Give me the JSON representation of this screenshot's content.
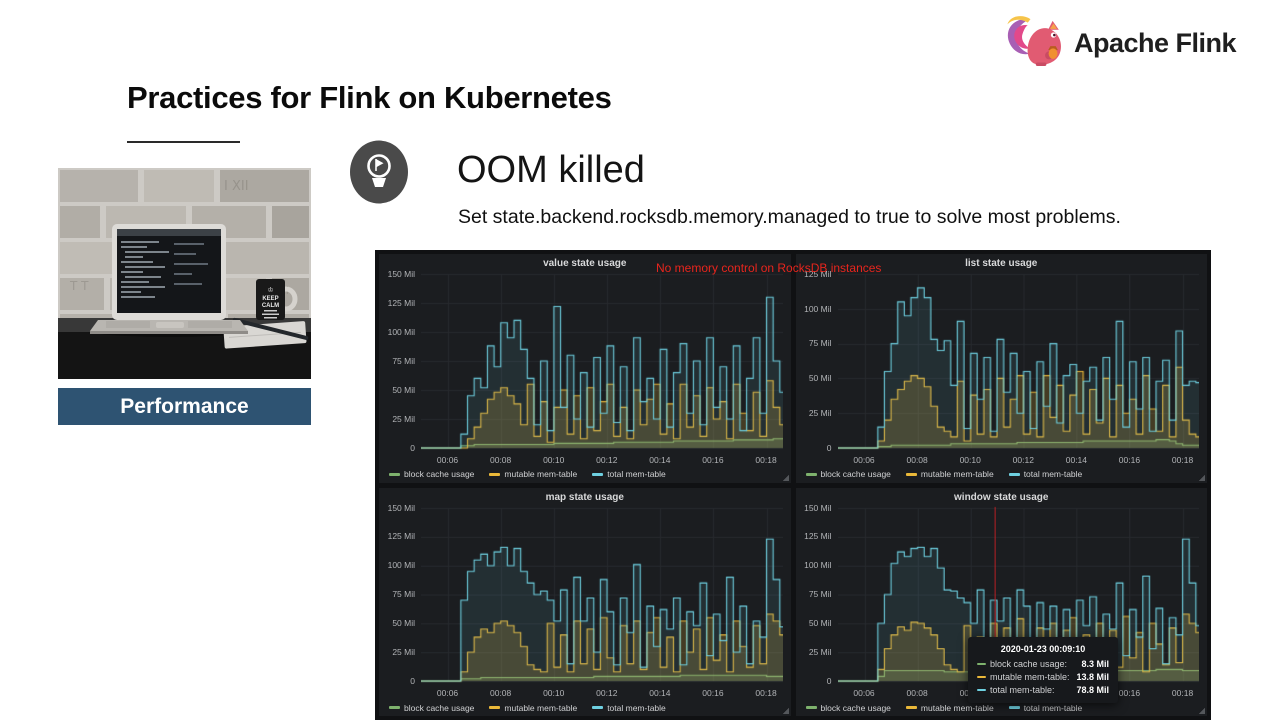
{
  "slide": {
    "title": "Practices for Flink on Kubernetes",
    "section_label": "Performance",
    "logo_text": "Apache Flink",
    "callout": {
      "heading": "OOM killed",
      "body": "Set state.backend.rocksdb.memory.managed to true to solve most problems."
    }
  },
  "dashboard": {
    "annotation": "No memory control on RocksDB instances",
    "annotation_color": "#e8251d",
    "tooltip": {
      "timestamp": "2020-01-23 00:09:10",
      "rows": [
        {
          "label": "block cache usage:",
          "value": "8.3 Mil",
          "color": "#7eb26d"
        },
        {
          "label": "mutable mem-table:",
          "value": "13.8 Mil",
          "color": "#eab839"
        },
        {
          "label": "total mem-table:",
          "value": "78.8 Mil",
          "color": "#6ed0e0"
        }
      ]
    }
  },
  "chart_data": [
    {
      "type": "area",
      "title": "value state usage",
      "ylim": [
        0,
        150
      ],
      "x_range": [
        5.0,
        18.62
      ],
      "x_start": 5.0,
      "x_step": 0.25,
      "yticks": [
        {
          "v": 0,
          "label": "0"
        },
        {
          "v": 25,
          "label": "25 Mil"
        },
        {
          "v": 50,
          "label": "50 Mil"
        },
        {
          "v": 75,
          "label": "75 Mil"
        },
        {
          "v": 100,
          "label": "100 Mil"
        },
        {
          "v": 125,
          "label": "125 Mil"
        },
        {
          "v": 150,
          "label": "150 Mil"
        }
      ],
      "xticks": [
        {
          "v": 6,
          "label": "00:06"
        },
        {
          "v": 8,
          "label": "00:08"
        },
        {
          "v": 10,
          "label": "00:10"
        },
        {
          "v": 12,
          "label": "00:12"
        },
        {
          "v": 14,
          "label": "00:14"
        },
        {
          "v": 16,
          "label": "00:16"
        },
        {
          "v": 18,
          "label": "00:18"
        }
      ],
      "series": [
        {
          "name": "block cache usage",
          "color": "#7eb26d",
          "fill": 0.18,
          "values": [
            0,
            0,
            0,
            0,
            0,
            0,
            2,
            2,
            3,
            3,
            3,
            3,
            3,
            3,
            3,
            3,
            3,
            3,
            3,
            3,
            4,
            4,
            4,
            4,
            4,
            4,
            4,
            4,
            4,
            5,
            5,
            5,
            5,
            5,
            5,
            5,
            5,
            5,
            6,
            6,
            6,
            6,
            6,
            6,
            6,
            6,
            6,
            7,
            7,
            7,
            7,
            7,
            7,
            8,
            8
          ]
        },
        {
          "name": "mutable mem-table",
          "color": "#eab839",
          "fill": 0.2,
          "values": [
            0,
            0,
            0,
            0,
            0,
            0,
            0,
            8,
            18,
            30,
            42,
            48,
            52,
            45,
            38,
            20,
            55,
            10,
            40,
            5,
            35,
            50,
            12,
            45,
            8,
            52,
            15,
            40,
            55,
            10,
            35,
            8,
            50,
            20,
            42,
            55,
            12,
            38,
            8,
            55,
            18,
            45,
            10,
            52,
            25,
            40,
            8,
            55,
            30,
            15,
            48,
            10,
            58,
            35,
            20
          ]
        },
        {
          "name": "total mem-table",
          "color": "#6ed0e0",
          "fill": 0.1,
          "values": [
            0,
            0,
            0,
            0,
            0,
            0,
            12,
            45,
            60,
            52,
            88,
            70,
            108,
            95,
            110,
            85,
            60,
            20,
            75,
            15,
            122,
            35,
            80,
            25,
            65,
            18,
            78,
            30,
            88,
            22,
            70,
            15,
            95,
            40,
            60,
            25,
            85,
            18,
            65,
            90,
            30,
            75,
            20,
            95,
            35,
            70,
            25,
            88,
            15,
            60,
            95,
            30,
            130,
            75,
            48
          ]
        }
      ]
    },
    {
      "type": "area",
      "title": "list state usage",
      "ylim": [
        0,
        125
      ],
      "x_range": [
        5.0,
        18.62
      ],
      "x_start": 5.0,
      "x_step": 0.25,
      "yticks": [
        {
          "v": 0,
          "label": "0"
        },
        {
          "v": 25,
          "label": "25 Mil"
        },
        {
          "v": 50,
          "label": "50 Mil"
        },
        {
          "v": 75,
          "label": "75 Mil"
        },
        {
          "v": 100,
          "label": "100 Mil"
        },
        {
          "v": 125,
          "label": "125 Mil"
        }
      ],
      "xticks": [
        {
          "v": 6,
          "label": "00:06"
        },
        {
          "v": 8,
          "label": "00:08"
        },
        {
          "v": 10,
          "label": "00:10"
        },
        {
          "v": 12,
          "label": "00:12"
        },
        {
          "v": 14,
          "label": "00:14"
        },
        {
          "v": 16,
          "label": "00:16"
        },
        {
          "v": 18,
          "label": "00:18"
        }
      ],
      "series": [
        {
          "name": "block cache usage",
          "color": "#7eb26d",
          "fill": 0.18,
          "values": [
            0,
            0,
            0,
            0,
            0,
            0,
            1,
            1,
            2,
            2,
            2,
            2,
            2,
            2,
            2,
            2,
            2,
            3,
            3,
            3,
            3,
            3,
            3,
            3,
            3,
            3,
            3,
            4,
            4,
            4,
            4,
            4,
            4,
            4,
            4,
            4,
            4,
            5,
            5,
            5,
            5,
            5,
            5,
            5,
            5,
            5,
            5,
            5,
            6,
            6,
            5,
            3,
            2,
            2,
            2
          ]
        },
        {
          "name": "mutable mem-table",
          "color": "#eab839",
          "fill": 0.2,
          "values": [
            0,
            0,
            0,
            0,
            0,
            0,
            5,
            20,
            35,
            42,
            48,
            52,
            50,
            44,
            30,
            15,
            12,
            8,
            48,
            5,
            38,
            10,
            42,
            8,
            50,
            15,
            35,
            52,
            10,
            40,
            8,
            52,
            22,
            45,
            12,
            38,
            55,
            10,
            42,
            18,
            50,
            8,
            45,
            25,
            35,
            10,
            52,
            28,
            12,
            45,
            8,
            58,
            20,
            10,
            8
          ]
        },
        {
          "name": "total mem-table",
          "color": "#6ed0e0",
          "fill": 0.1,
          "values": [
            0,
            0,
            0,
            0,
            0,
            0,
            15,
            55,
            75,
            105,
            95,
            108,
            115,
            108,
            78,
            70,
            77,
            45,
            91,
            14,
            68,
            35,
            65,
            12,
            78,
            40,
            68,
            25,
            55,
            14,
            62,
            30,
            75,
            18,
            52,
            60,
            25,
            48,
            58,
            20,
            65,
            35,
            91,
            15,
            62,
            28,
            65,
            12,
            48,
            63,
            20,
            84,
            45,
            48,
            47
          ]
        }
      ]
    },
    {
      "type": "area",
      "title": "map state usage",
      "ylim": [
        0,
        150
      ],
      "x_range": [
        5.0,
        18.62
      ],
      "x_start": 5.0,
      "x_step": 0.25,
      "yticks": [
        {
          "v": 0,
          "label": "0"
        },
        {
          "v": 25,
          "label": "25 Mil"
        },
        {
          "v": 50,
          "label": "50 Mil"
        },
        {
          "v": 75,
          "label": "75 Mil"
        },
        {
          "v": 100,
          "label": "100 Mil"
        },
        {
          "v": 125,
          "label": "125 Mil"
        },
        {
          "v": 150,
          "label": "150 Mil"
        }
      ],
      "xticks": [
        {
          "v": 6,
          "label": "00:06"
        },
        {
          "v": 8,
          "label": "00:08"
        },
        {
          "v": 10,
          "label": "00:10"
        },
        {
          "v": 12,
          "label": "00:12"
        },
        {
          "v": 14,
          "label": "00:14"
        },
        {
          "v": 16,
          "label": "00:16"
        },
        {
          "v": 18,
          "label": "00:18"
        }
      ],
      "series": [
        {
          "name": "block cache usage",
          "color": "#7eb26d",
          "fill": 0.18,
          "values": [
            0,
            0,
            0,
            0,
            0,
            0,
            2,
            2,
            2,
            3,
            3,
            3,
            3,
            3,
            3,
            3,
            3,
            3,
            3,
            3,
            3,
            3,
            3,
            3,
            3,
            3,
            4,
            4,
            4,
            4,
            4,
            4,
            4,
            4,
            4,
            4,
            4,
            4,
            4,
            5,
            5,
            5,
            5,
            5,
            5,
            5,
            5,
            5,
            5,
            5,
            5,
            5,
            4,
            4,
            4
          ]
        },
        {
          "name": "mutable mem-table",
          "color": "#eab839",
          "fill": 0.2,
          "values": [
            0,
            0,
            0,
            0,
            0,
            0,
            8,
            25,
            38,
            45,
            42,
            50,
            52,
            48,
            42,
            30,
            14,
            10,
            8,
            50,
            12,
            40,
            8,
            52,
            15,
            45,
            10,
            55,
            20,
            8,
            48,
            15,
            52,
            10,
            42,
            55,
            12,
            38,
            8,
            52,
            25,
            45,
            10,
            55,
            18,
            40,
            8,
            52,
            30,
            12,
            48,
            15,
            58,
            52,
            40
          ]
        },
        {
          "name": "total mem-table",
          "color": "#6ed0e0",
          "fill": 0.1,
          "values": [
            0,
            0,
            0,
            0,
            0,
            0,
            70,
            95,
            105,
            110,
            100,
            112,
            116,
            100,
            115,
            95,
            85,
            75,
            78,
            70,
            52,
            79,
            15,
            90,
            52,
            72,
            25,
            88,
            60,
            14,
            72,
            42,
            101,
            12,
            65,
            30,
            62,
            45,
            72,
            14,
            60,
            48,
            85,
            22,
            58,
            35,
            90,
            25,
            65,
            15,
            52,
            38,
            123,
            88,
            47
          ]
        }
      ]
    },
    {
      "type": "area",
      "title": "window state usage",
      "ylim": [
        0,
        150
      ],
      "x_range": [
        5.0,
        18.62
      ],
      "x_start": 5.0,
      "x_step": 0.25,
      "cursor_t": 10.9,
      "cursor_color": "#b92125",
      "yticks": [
        {
          "v": 0,
          "label": "0"
        },
        {
          "v": 25,
          "label": "25 Mil"
        },
        {
          "v": 50,
          "label": "50 Mil"
        },
        {
          "v": 75,
          "label": "75 Mil"
        },
        {
          "v": 100,
          "label": "100 Mil"
        },
        {
          "v": 125,
          "label": "125 Mil"
        },
        {
          "v": 150,
          "label": "150 Mil"
        }
      ],
      "xticks": [
        {
          "v": 6,
          "label": "00:06"
        },
        {
          "v": 8,
          "label": "00:08"
        },
        {
          "v": 10,
          "label": "00:10"
        },
        {
          "v": 12,
          "label": "00:12"
        },
        {
          "v": 14,
          "label": "00:14"
        },
        {
          "v": 16,
          "label": "00:16"
        },
        {
          "v": 18,
          "label": "00:18"
        }
      ],
      "series": [
        {
          "name": "block cache usage",
          "color": "#7eb26d",
          "fill": 0.18,
          "values": [
            0,
            0,
            0,
            0,
            0,
            0,
            4,
            9,
            9,
            9,
            9,
            9,
            9,
            9,
            9,
            9,
            8,
            8,
            8,
            8,
            8,
            8,
            8,
            8,
            8,
            8,
            9,
            9,
            9,
            9,
            9,
            9,
            9,
            9,
            9,
            9,
            9,
            9,
            9,
            9,
            9,
            9,
            9,
            9,
            9,
            9,
            9,
            9,
            10,
            10,
            10,
            10,
            9,
            9,
            9
          ]
        },
        {
          "name": "mutable mem-table",
          "color": "#eab839",
          "fill": 0.2,
          "values": [
            0,
            0,
            0,
            0,
            0,
            0,
            10,
            28,
            40,
            47,
            44,
            51,
            50,
            46,
            40,
            28,
            14,
            10,
            8,
            48,
            12,
            38,
            8,
            50,
            14,
            46,
            10,
            54,
            22,
            8,
            46,
            16,
            50,
            12,
            44,
            55,
            10,
            40,
            8,
            50,
            26,
            44,
            12,
            56,
            20,
            42,
            8,
            50,
            32,
            14,
            46,
            16,
            58,
            50,
            42
          ]
        },
        {
          "name": "total mem-table",
          "color": "#6ed0e0",
          "fill": 0.1,
          "values": [
            0,
            0,
            0,
            0,
            0,
            0,
            50,
            75,
            102,
            112,
            108,
            115,
            116,
            108,
            115,
            98,
            79,
            78,
            72,
            68,
            50,
            79,
            18,
            70,
            52,
            72,
            25,
            79,
            65,
            14,
            68,
            45,
            65,
            12,
            62,
            35,
            70,
            48,
            73,
            14,
            58,
            45,
            85,
            22,
            62,
            38,
            91,
            28,
            63,
            15,
            55,
            40,
            123,
            85,
            48
          ]
        }
      ]
    }
  ]
}
